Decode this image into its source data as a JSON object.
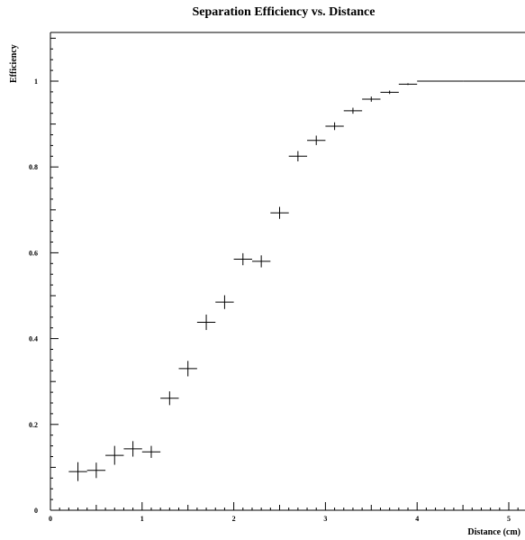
{
  "chart_data": {
    "type": "scatter",
    "title": "Separation Efficiency vs. Distance",
    "xlabel": "Distance (cm)",
    "ylabel": "Efficiency",
    "xlim": [
      0,
      5.25
    ],
    "ylim": [
      0,
      1.1
    ],
    "x_ticks": [
      0,
      1,
      2,
      3,
      4,
      5
    ],
    "y_ticks": [
      0,
      0.2,
      0.4,
      0.6,
      0.8,
      1
    ],
    "x_tick_labels": [
      "0",
      "1",
      "2",
      "3",
      "4",
      "5"
    ],
    "y_tick_labels": [
      "0",
      "0.2",
      "0.4",
      "0.6",
      "0.8",
      "1"
    ],
    "grid": false,
    "series": [
      {
        "points": [
          {
            "x": 0.3,
            "y": 0.09,
            "xerr": 0.1,
            "yerr": 0.022
          },
          {
            "x": 0.5,
            "y": 0.093,
            "xerr": 0.1,
            "yerr": 0.018
          },
          {
            "x": 0.7,
            "y": 0.128,
            "xerr": 0.1,
            "yerr": 0.022
          },
          {
            "x": 0.9,
            "y": 0.143,
            "xerr": 0.1,
            "yerr": 0.018
          },
          {
            "x": 1.1,
            "y": 0.136,
            "xerr": 0.1,
            "yerr": 0.014
          },
          {
            "x": 1.3,
            "y": 0.261,
            "xerr": 0.1,
            "yerr": 0.016
          },
          {
            "x": 1.5,
            "y": 0.33,
            "xerr": 0.1,
            "yerr": 0.018
          },
          {
            "x": 1.7,
            "y": 0.438,
            "xerr": 0.1,
            "yerr": 0.018
          },
          {
            "x": 1.9,
            "y": 0.485,
            "xerr": 0.1,
            "yerr": 0.016
          },
          {
            "x": 2.1,
            "y": 0.585,
            "xerr": 0.1,
            "yerr": 0.014
          },
          {
            "x": 2.3,
            "y": 0.58,
            "xerr": 0.1,
            "yerr": 0.014
          },
          {
            "x": 2.5,
            "y": 0.693,
            "xerr": 0.1,
            "yerr": 0.014
          },
          {
            "x": 2.7,
            "y": 0.825,
            "xerr": 0.1,
            "yerr": 0.012
          },
          {
            "x": 2.9,
            "y": 0.862,
            "xerr": 0.1,
            "yerr": 0.011
          },
          {
            "x": 3.1,
            "y": 0.895,
            "xerr": 0.1,
            "yerr": 0.009
          },
          {
            "x": 3.3,
            "y": 0.931,
            "xerr": 0.1,
            "yerr": 0.007
          },
          {
            "x": 3.5,
            "y": 0.958,
            "xerr": 0.1,
            "yerr": 0.006
          },
          {
            "x": 3.7,
            "y": 0.974,
            "xerr": 0.1,
            "yerr": 0.004
          },
          {
            "x": 3.9,
            "y": 0.993,
            "xerr": 0.1,
            "yerr": 0.002
          },
          {
            "x": 4.25,
            "y": 1.0,
            "xerr": 0.25,
            "yerr": 0
          },
          {
            "x": 4.75,
            "y": 1.0,
            "xerr": 0.25,
            "yerr": 0
          },
          {
            "x": 5.125,
            "y": 1.0,
            "xerr": 0.125,
            "yerr": 0
          }
        ]
      }
    ]
  }
}
